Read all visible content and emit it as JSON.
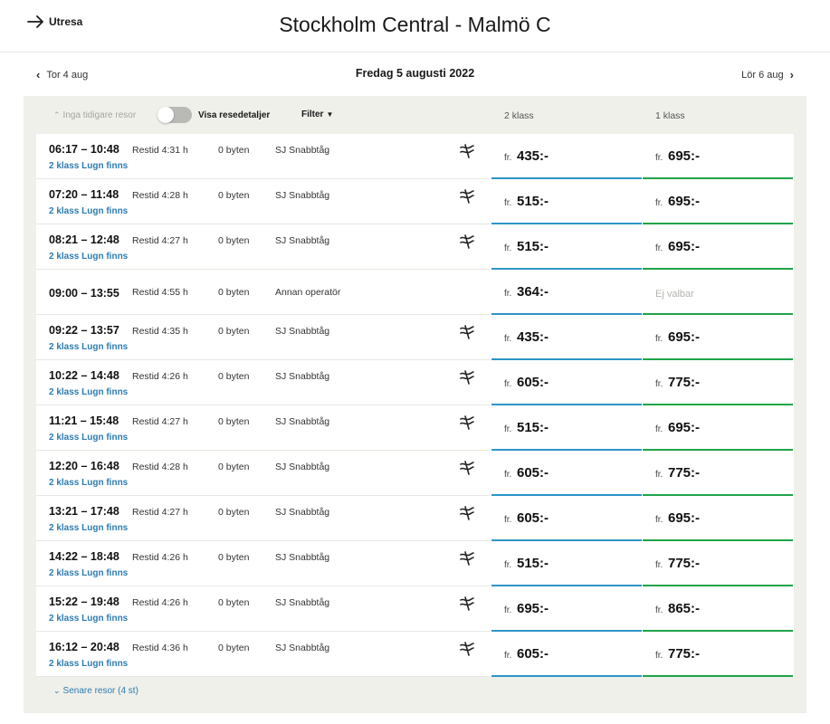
{
  "header": {
    "back_label": "Utresa",
    "route_title": "Stockholm Central - Malmö C"
  },
  "date_nav": {
    "prev_label": "Tor 4 aug",
    "current": "Fredag 5 augusti 2022",
    "next_label": "Lör 6 aug"
  },
  "controls": {
    "earlier_label": "Inga tidigare resor",
    "toggle_label": "Visa resedetaljer",
    "filter_label": "Filter",
    "col_2nd": "2 klass",
    "col_1st": "1 klass"
  },
  "price_prefix": "fr.",
  "trips": [
    {
      "time": "06:17 – 10:48",
      "lugn": "2 klass Lugn finns",
      "restid": "Restid 4:31 h",
      "byten": "0 byten",
      "operator": "SJ Snabbtåg",
      "p2": "435:-",
      "p1": "695:-"
    },
    {
      "time": "07:20 – 11:48",
      "lugn": "2 klass Lugn finns",
      "restid": "Restid 4:28 h",
      "byten": "0 byten",
      "operator": "SJ Snabbtåg",
      "p2": "515:-",
      "p1": "695:-"
    },
    {
      "time": "08:21 – 12:48",
      "lugn": "2 klass Lugn finns",
      "restid": "Restid 4:27 h",
      "byten": "0 byten",
      "operator": "SJ Snabbtåg",
      "p2": "515:-",
      "p1": "695:-"
    },
    {
      "time": "09:00 – 13:55",
      "lugn": "",
      "restid": "Restid 4:55 h",
      "byten": "0 byten",
      "operator": "Annan operatör",
      "p2": "364:-",
      "p1": "Ej valbar"
    },
    {
      "time": "09:22 – 13:57",
      "lugn": "2 klass Lugn finns",
      "restid": "Restid 4:35 h",
      "byten": "0 byten",
      "operator": "SJ Snabbtåg",
      "p2": "435:-",
      "p1": "695:-"
    },
    {
      "time": "10:22 – 14:48",
      "lugn": "2 klass Lugn finns",
      "restid": "Restid 4:26 h",
      "byten": "0 byten",
      "operator": "SJ Snabbtåg",
      "p2": "605:-",
      "p1": "775:-"
    },
    {
      "time": "11:21 – 15:48",
      "lugn": "2 klass Lugn finns",
      "restid": "Restid 4:27 h",
      "byten": "0 byten",
      "operator": "SJ Snabbtåg",
      "p2": "515:-",
      "p1": "695:-"
    },
    {
      "time": "12:20 – 16:48",
      "lugn": "2 klass Lugn finns",
      "restid": "Restid 4:28 h",
      "byten": "0 byten",
      "operator": "SJ Snabbtåg",
      "p2": "605:-",
      "p1": "775:-"
    },
    {
      "time": "13:21 – 17:48",
      "lugn": "2 klass Lugn finns",
      "restid": "Restid 4:27 h",
      "byten": "0 byten",
      "operator": "SJ Snabbtåg",
      "p2": "605:-",
      "p1": "695:-"
    },
    {
      "time": "14:22 – 18:48",
      "lugn": "2 klass Lugn finns",
      "restid": "Restid 4:26 h",
      "byten": "0 byten",
      "operator": "SJ Snabbtåg",
      "p2": "515:-",
      "p1": "775:-"
    },
    {
      "time": "15:22 – 19:48",
      "lugn": "2 klass Lugn finns",
      "restid": "Restid 4:26 h",
      "byten": "0 byten",
      "operator": "SJ Snabbtåg",
      "p2": "695:-",
      "p1": "865:-"
    },
    {
      "time": "16:12 – 20:48",
      "lugn": "2 klass Lugn finns",
      "restid": "Restid 4:36 h",
      "byten": "0 byten",
      "operator": "SJ Snabbtåg",
      "p2": "605:-",
      "p1": "775:-"
    }
  ],
  "footer": {
    "later_label": "Senare resor (4 st)"
  },
  "colors": {
    "accent_2nd": "#2d95c8",
    "accent_1st": "#1fa44a",
    "link": "#2d7bb0",
    "panel_bg": "#eff0ea"
  }
}
